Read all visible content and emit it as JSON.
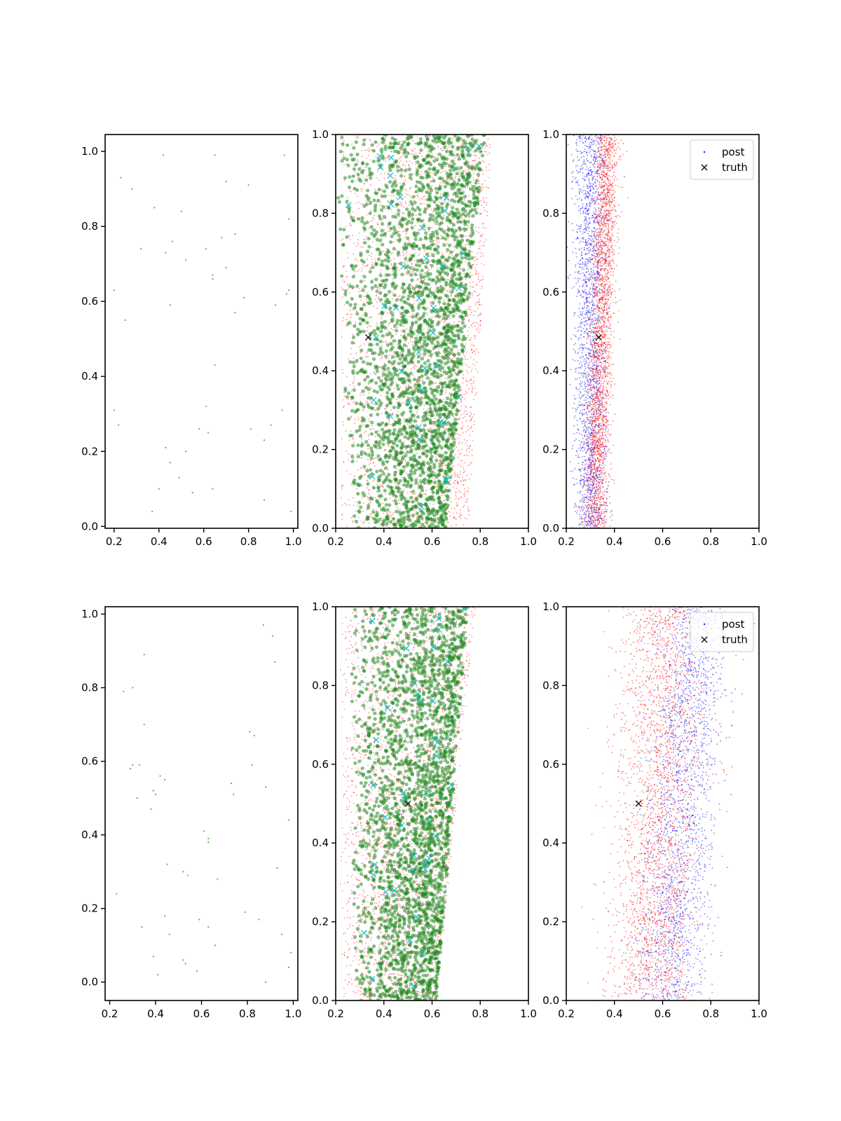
{
  "figure": {
    "legend_labels": [
      "post",
      "truth"
    ]
  },
  "colors": {
    "points_green_small": "#2ca02c",
    "scatter_green": "#228b22",
    "scatter_red": "#ff0000",
    "scatter_blue": "#0000ff",
    "cyan_markers": "#17becf",
    "truth_marker": "#000000",
    "axes": "#000000"
  },
  "chart_data": [
    {
      "panel": "row1-col1",
      "type": "scatter",
      "xlim": [
        0.16,
        1.02
      ],
      "ylim": [
        -0.005,
        1.045
      ],
      "xticks": [
        "0.2",
        "0.4",
        "0.6",
        "0.8",
        "1.0"
      ],
      "yticks": [
        "0.0",
        "0.2",
        "0.4",
        "0.6",
        "0.8",
        "1.0"
      ],
      "grid": false,
      "series": [
        {
          "color": "green",
          "marker": "dot",
          "size": "tiny",
          "x": [
            0.42,
            0.65,
            0.96,
            0.23,
            0.28,
            0.7,
            0.8,
            0.38,
            0.5,
            0.98,
            0.46,
            0.68,
            0.74,
            0.32,
            0.43,
            0.61,
            0.52,
            0.64,
            0.7,
            0.64,
            0.2,
            0.78,
            0.98,
            0.97,
            0.25,
            0.74,
            0.92,
            0.45,
            0.65,
            0.2,
            0.61,
            0.95,
            0.22,
            0.9,
            0.58,
            0.62,
            0.81,
            0.87,
            0.43,
            0.52,
            0.45,
            0.49,
            0.4,
            0.55,
            0.64,
            0.37,
            0.87,
            0.99
          ],
          "y": [
            0.99,
            0.99,
            0.99,
            0.93,
            0.9,
            0.92,
            0.91,
            0.85,
            0.84,
            0.82,
            0.76,
            0.77,
            0.78,
            0.74,
            0.73,
            0.74,
            0.71,
            0.67,
            0.69,
            0.66,
            0.63,
            0.61,
            0.63,
            0.62,
            0.55,
            0.57,
            0.59,
            0.59,
            0.43,
            0.31,
            0.32,
            0.31,
            0.27,
            0.27,
            0.26,
            0.25,
            0.26,
            0.23,
            0.21,
            0.2,
            0.17,
            0.13,
            0.1,
            0.09,
            0.1,
            0.04,
            0.07,
            0.04
          ]
        }
      ]
    },
    {
      "panel": "row1-col2",
      "type": "scatter",
      "xlim": [
        0.2,
        1.0
      ],
      "ylim": [
        0.0,
        1.0
      ],
      "xticks": [
        "0.2",
        "0.4",
        "0.6",
        "0.8",
        "1.0"
      ],
      "yticks": [
        "0.0",
        "0.2",
        "0.4",
        "0.6",
        "0.8",
        "1.0"
      ],
      "grid": false,
      "series": [
        {
          "color": "red",
          "marker": "dot",
          "size": "tiny",
          "count_approx": 3000,
          "x_range_at_y0": [
            0.22,
            0.75
          ],
          "x_range_at_y1": [
            0.22,
            0.85
          ]
        },
        {
          "color": "green",
          "marker": "circle",
          "size": "medium",
          "count_approx": 2500,
          "x_range_at_y0": [
            0.25,
            0.66
          ],
          "x_range_at_y1": [
            0.2,
            0.82
          ]
        },
        {
          "color": "cyan",
          "marker": "x",
          "count_approx": 40
        },
        {
          "color": "black",
          "marker": "x",
          "x": [
            0.335
          ],
          "y": [
            0.485
          ]
        }
      ]
    },
    {
      "panel": "row1-col3",
      "type": "scatter",
      "xlim": [
        0.2,
        1.0
      ],
      "ylim": [
        0.0,
        1.0
      ],
      "xticks": [
        "0.2",
        "0.4",
        "0.6",
        "0.8",
        "1.0"
      ],
      "yticks": [
        "0.0",
        "0.2",
        "0.4",
        "0.6",
        "0.8",
        "1.0"
      ],
      "grid": false,
      "legend": "top-right",
      "legend_entries": [
        "post",
        "truth"
      ],
      "series": [
        {
          "color": "blue",
          "marker": "dot",
          "size": "tiny",
          "count_approx": 2000,
          "x_center": 0.3,
          "x_spread": 0.06
        },
        {
          "color": "red",
          "marker": "dot",
          "size": "tiny",
          "count_approx": 2500,
          "x_center_at_y0": 0.32,
          "x_center_at_y1": 0.37
        },
        {
          "name": "truth",
          "color": "black",
          "marker": "x",
          "x": [
            0.335
          ],
          "y": [
            0.485
          ]
        }
      ]
    },
    {
      "panel": "row2-col1",
      "type": "scatter",
      "xlim": [
        0.18,
        1.02
      ],
      "ylim": [
        -0.05,
        1.02
      ],
      "xticks": [
        "0.2",
        "0.4",
        "0.6",
        "0.8",
        "1.0"
      ],
      "yticks": [
        "0.0",
        "0.2",
        "0.4",
        "0.6",
        "0.8",
        "1.0"
      ],
      "grid": false,
      "series": [
        {
          "color": "green",
          "marker": "dot",
          "size": "tiny",
          "x": [
            0.87,
            0.91,
            0.35,
            0.92,
            0.26,
            0.3,
            0.35,
            0.81,
            0.83,
            0.3,
            0.33,
            0.29,
            0.42,
            0.44,
            0.82,
            0.73,
            0.88,
            0.32,
            0.4,
            0.39,
            0.74,
            0.38,
            0.98,
            0.61,
            0.63,
            0.63,
            0.45,
            0.52,
            0.54,
            0.67,
            0.93,
            0.23,
            0.79,
            0.59,
            0.63,
            0.34,
            0.44,
            0.85,
            0.46,
            0.95,
            0.66,
            0.39,
            0.52,
            0.99,
            0.53,
            0.41,
            0.58,
            0.88,
            0.98
          ],
          "y": [
            0.97,
            0.94,
            0.89,
            0.87,
            0.79,
            0.8,
            0.7,
            0.68,
            0.67,
            0.59,
            0.59,
            0.58,
            0.56,
            0.55,
            0.59,
            0.54,
            0.53,
            0.5,
            0.51,
            0.52,
            0.51,
            0.47,
            0.44,
            0.41,
            0.39,
            0.38,
            0.32,
            0.3,
            0.29,
            0.28,
            0.31,
            0.24,
            0.19,
            0.17,
            0.15,
            0.15,
            0.18,
            0.17,
            0.13,
            0.13,
            0.1,
            0.07,
            0.06,
            0.08,
            0.05,
            0.02,
            0.03,
            0.0,
            0.04
          ]
        }
      ]
    },
    {
      "panel": "row2-col2",
      "type": "scatter",
      "xlim": [
        0.2,
        1.0
      ],
      "ylim": [
        0.0,
        1.0
      ],
      "xticks": [
        "0.2",
        "0.4",
        "0.6",
        "0.8",
        "1.0"
      ],
      "yticks": [
        "0.0",
        "0.2",
        "0.4",
        "0.6",
        "0.8",
        "1.0"
      ],
      "grid": false,
      "series": [
        {
          "color": "red",
          "marker": "dot",
          "size": "tiny",
          "count_approx": 3000,
          "x_range_at_y0": [
            0.22,
            0.62
          ],
          "x_range_at_y1": [
            0.22,
            0.78
          ]
        },
        {
          "color": "green",
          "marker": "circle",
          "size": "medium",
          "count_approx": 2500,
          "x_range_at_y0": [
            0.27,
            0.62
          ],
          "x_range_at_y1": [
            0.26,
            0.75
          ]
        },
        {
          "color": "cyan",
          "marker": "x",
          "count_approx": 40
        },
        {
          "color": "black",
          "marker": "x",
          "x": [
            0.5
          ],
          "y": [
            0.5
          ]
        }
      ]
    },
    {
      "panel": "row2-col3",
      "type": "scatter",
      "xlim": [
        0.2,
        1.0
      ],
      "ylim": [
        0.0,
        1.0
      ],
      "xticks": [
        "0.2",
        "0.4",
        "0.6",
        "0.8",
        "1.0"
      ],
      "yticks": [
        "0.0",
        "0.2",
        "0.4",
        "0.6",
        "0.8",
        "1.0"
      ],
      "grid": false,
      "legend": "top-right",
      "legend_entries": [
        "post",
        "truth"
      ],
      "series": [
        {
          "color": "blue",
          "marker": "dot",
          "size": "tiny",
          "count_approx": 2000,
          "x_center_at_y0": 0.62,
          "x_center_at_y1": 0.75
        },
        {
          "color": "red",
          "marker": "dot",
          "size": "tiny",
          "count_approx": 2500,
          "x_center_at_y0": 0.56,
          "x_center_at_y1": 0.6
        },
        {
          "name": "truth",
          "color": "black",
          "marker": "x",
          "x": [
            0.5
          ],
          "y": [
            0.5
          ]
        }
      ]
    }
  ]
}
